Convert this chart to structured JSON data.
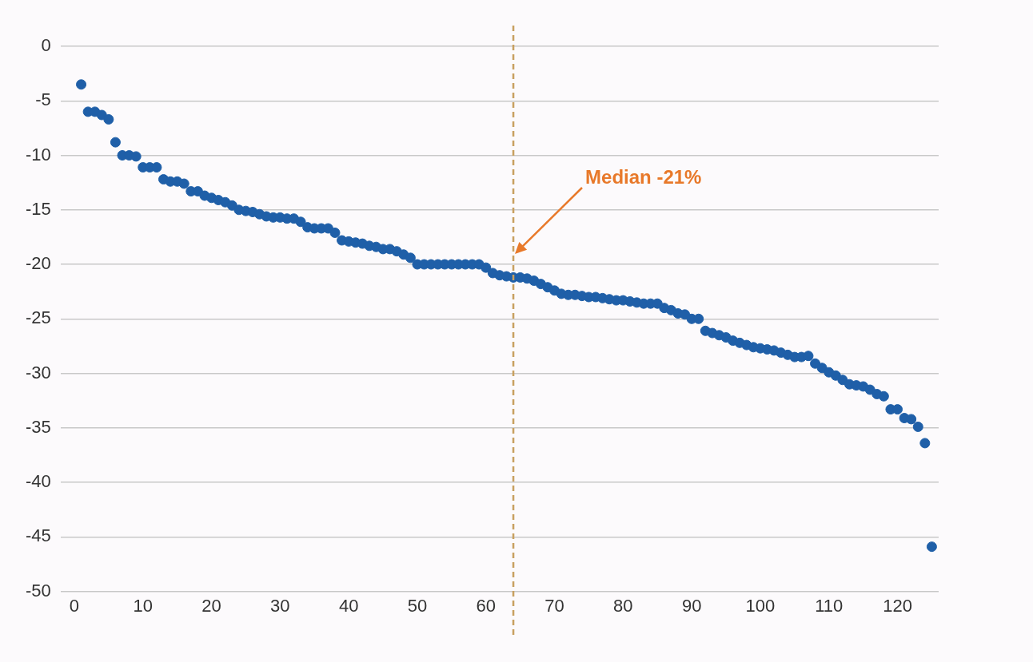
{
  "chart_data": {
    "type": "scatter",
    "x": [
      1,
      2,
      3,
      4,
      5,
      6,
      7,
      8,
      9,
      10,
      11,
      12,
      13,
      14,
      15,
      16,
      17,
      18,
      19,
      20,
      21,
      22,
      23,
      24,
      25,
      26,
      27,
      28,
      29,
      30,
      31,
      32,
      33,
      34,
      35,
      36,
      37,
      38,
      39,
      40,
      41,
      42,
      43,
      44,
      45,
      46,
      47,
      48,
      49,
      50,
      51,
      52,
      53,
      54,
      55,
      56,
      57,
      58,
      59,
      60,
      61,
      62,
      63,
      64,
      65,
      66,
      67,
      68,
      69,
      70,
      71,
      72,
      73,
      74,
      75,
      76,
      77,
      78,
      79,
      80,
      81,
      82,
      83,
      84,
      85,
      86,
      87,
      88,
      89,
      90,
      91,
      92,
      93,
      94,
      95,
      96,
      97,
      98,
      99,
      100,
      101,
      102,
      103,
      104,
      105,
      106,
      107,
      108,
      109,
      110,
      111,
      112,
      113,
      114,
      115,
      116,
      117,
      118,
      119,
      120,
      121,
      122,
      123,
      124,
      125
    ],
    "series": [
      {
        "color": "#1f5fa8",
        "values": [
          -3.5,
          -6.0,
          -6.0,
          -6.3,
          -6.7,
          -8.8,
          -10.0,
          -10.0,
          -10.1,
          -11.1,
          -11.1,
          -11.1,
          -12.2,
          -12.4,
          -12.4,
          -12.6,
          -13.3,
          -13.3,
          -13.7,
          -13.9,
          -14.1,
          -14.3,
          -14.6,
          -15.0,
          -15.1,
          -15.2,
          -15.4,
          -15.6,
          -15.7,
          -15.7,
          -15.8,
          -15.8,
          -16.1,
          -16.6,
          -16.7,
          -16.7,
          -16.7,
          -17.1,
          -17.8,
          -17.9,
          -18.0,
          -18.1,
          -18.3,
          -18.4,
          -18.6,
          -18.6,
          -18.8,
          -19.1,
          -19.4,
          -20.0,
          -20.0,
          -20.0,
          -20.0,
          -20.0,
          -20.0,
          -20.0,
          -20.0,
          -20.0,
          -20.0,
          -20.3,
          -20.8,
          -21.0,
          -21.1,
          -21.2,
          -21.2,
          -21.3,
          -21.5,
          -21.8,
          -22.1,
          -22.4,
          -22.7,
          -22.8,
          -22.8,
          -22.9,
          -23.0,
          -23.0,
          -23.1,
          -23.2,
          -23.3,
          -23.3,
          -23.4,
          -23.5,
          -23.6,
          -23.6,
          -23.6,
          -24.0,
          -24.2,
          -24.5,
          -24.6,
          -25.0,
          -25.0,
          -26.1,
          -26.3,
          -26.5,
          -26.7,
          -27.0,
          -27.2,
          -27.4,
          -27.6,
          -27.7,
          -27.8,
          -27.9,
          -28.1,
          -28.3,
          -28.5,
          -28.5,
          -28.4,
          -29.1,
          -29.5,
          -29.9,
          -30.2,
          -30.6,
          -31.0,
          -31.1,
          -31.2,
          -31.5,
          -31.9,
          -32.1,
          -33.3,
          -33.3,
          -34.1,
          -34.2,
          -34.9,
          -36.4,
          -45.9
        ]
      }
    ],
    "xlim": [
      -2,
      126
    ],
    "xticks": [
      0,
      10,
      20,
      30,
      40,
      50,
      60,
      70,
      80,
      90,
      100,
      110,
      120
    ],
    "ylim": [
      -50,
      0
    ],
    "yticks": [
      -50,
      -45,
      -40,
      -35,
      -30,
      -25,
      -20,
      -15,
      -10,
      -5,
      0
    ],
    "grid": "y",
    "marker": "circle",
    "legend": false,
    "ref_lines": [
      {
        "axis": "x",
        "value": 64,
        "color": "#c8a060",
        "line_style": "dashed"
      }
    ],
    "annotations": [
      "Median -21%"
    ]
  }
}
